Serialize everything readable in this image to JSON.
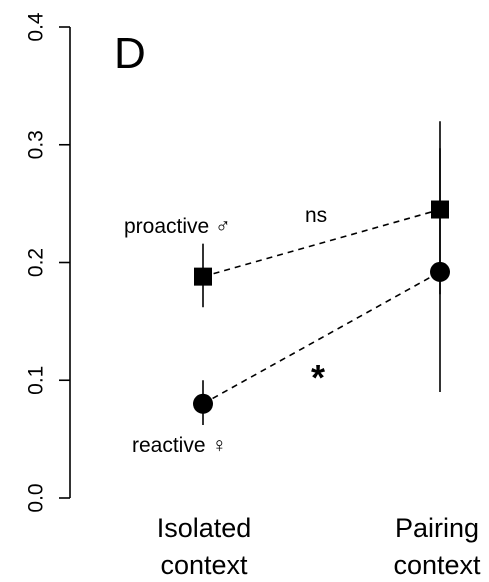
{
  "chart_data": {
    "type": "scatter",
    "panel_label": "D",
    "categories": [
      "Isolated\ncontext",
      "Pairing\ncontext"
    ],
    "ylim": [
      0.0,
      0.4
    ],
    "yticks": [
      "0.0",
      "0.1",
      "0.2",
      "0.3",
      "0.4"
    ],
    "grid": false,
    "series": [
      {
        "name": "proactive ♂",
        "marker": "square",
        "line_style": "dashed",
        "points": [
          {
            "category": "Isolated\ncontext",
            "y": 0.188,
            "err_low": 0.162,
            "err_high": 0.216
          },
          {
            "category": "Pairing\ncontext",
            "y": 0.245,
            "err_low": 0.173,
            "err_high": 0.297
          }
        ],
        "annotation": "ns"
      },
      {
        "name": "reactive ♀",
        "marker": "circle",
        "line_style": "dashed",
        "points": [
          {
            "category": "Isolated\ncontext",
            "y": 0.08,
            "err_low": 0.062,
            "err_high": 0.1
          },
          {
            "category": "Pairing\ncontext",
            "y": 0.192,
            "err_low": 0.09,
            "err_high": 0.32
          }
        ],
        "annotation": "*"
      }
    ]
  }
}
